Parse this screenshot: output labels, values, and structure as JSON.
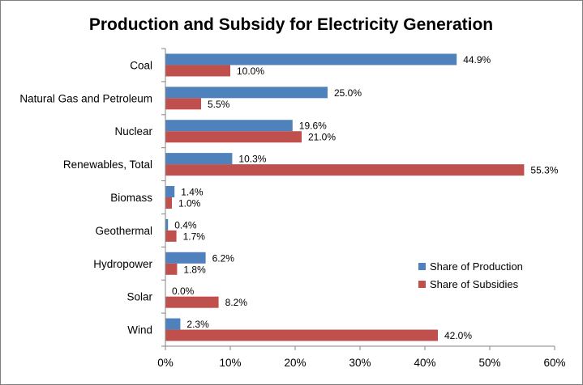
{
  "chart_data": {
    "type": "bar",
    "orientation": "horizontal",
    "title": "Production and Subsidy for Electricity Generation",
    "categories": [
      "Coal",
      "Natural Gas and Petroleum",
      "Nuclear",
      "Renewables, Total",
      "Biomass",
      "Geothermal",
      "Hydropower",
      "Solar",
      "Wind"
    ],
    "series": [
      {
        "name": "Share of Production",
        "color": "#4f81bd",
        "values": [
          44.9,
          25.0,
          19.6,
          10.3,
          1.4,
          0.4,
          6.2,
          0.0,
          2.3
        ],
        "labels": [
          "44.9%",
          "25.0%",
          "19.6%",
          "10.3%",
          "1.4%",
          "0.4%",
          "6.2%",
          "0.0%",
          "2.3%"
        ]
      },
      {
        "name": "Share of Subsidies",
        "color": "#c0504d",
        "values": [
          10.0,
          5.5,
          21.0,
          55.3,
          1.0,
          1.7,
          1.8,
          8.2,
          42.0
        ],
        "labels": [
          "10.0%",
          "5.5%",
          "21.0%",
          "55.3%",
          "1.0%",
          "1.7%",
          "1.8%",
          "8.2%",
          "42.0%"
        ]
      }
    ],
    "xlim": [
      0,
      60
    ],
    "xticks": [
      0,
      10,
      20,
      30,
      40,
      50,
      60
    ],
    "xtick_labels": [
      "0%",
      "10%",
      "20%",
      "30%",
      "40%",
      "50%",
      "60%"
    ],
    "xlabel": "",
    "ylabel": "",
    "grid": false,
    "legend_position": "right"
  }
}
